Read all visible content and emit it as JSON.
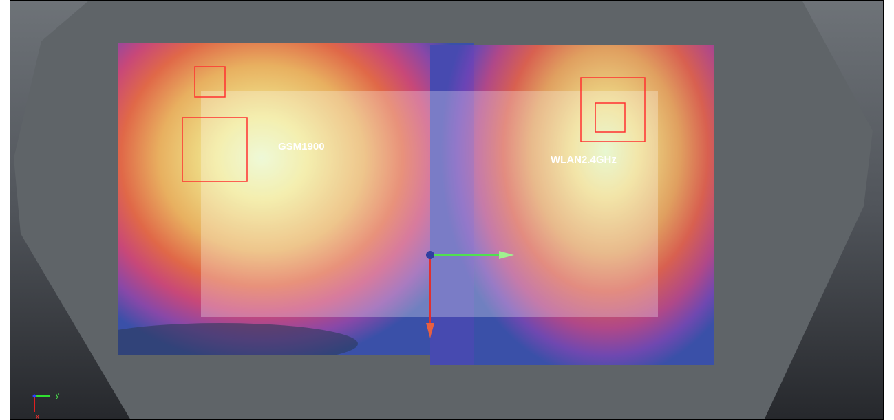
{
  "labels": {
    "left_band": "GSM1900",
    "right_band": "WLAN2.4GHz"
  },
  "axis_triad": {
    "y": "y",
    "x": "x"
  }
}
